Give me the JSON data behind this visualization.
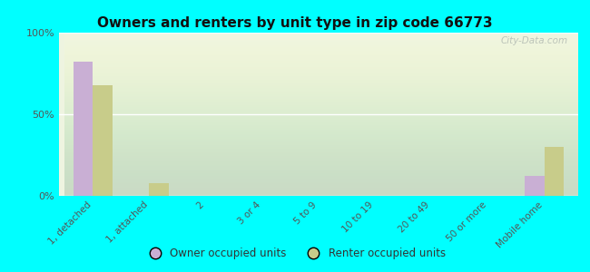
{
  "title": "Owners and renters by unit type in zip code 66773",
  "categories": [
    "1, detached",
    "1, attached",
    "2",
    "3 or 4",
    "5 to 9",
    "10 to 19",
    "20 to 49",
    "50 or more",
    "Mobile home"
  ],
  "owner_values": [
    82,
    0,
    0,
    0,
    0,
    0,
    0,
    0,
    12
  ],
  "renter_values": [
    68,
    8,
    0,
    0,
    0,
    0,
    0,
    0,
    30
  ],
  "owner_color": "#c9afd4",
  "renter_color": "#c8cc8a",
  "background_color": "#00ffff",
  "ylim": [
    0,
    100
  ],
  "yticks": [
    0,
    50,
    100
  ],
  "ytick_labels": [
    "0%",
    "50%",
    "100%"
  ],
  "bar_width": 0.35,
  "legend_owner": "Owner occupied units",
  "legend_renter": "Renter occupied units",
  "watermark": "City-Data.com"
}
